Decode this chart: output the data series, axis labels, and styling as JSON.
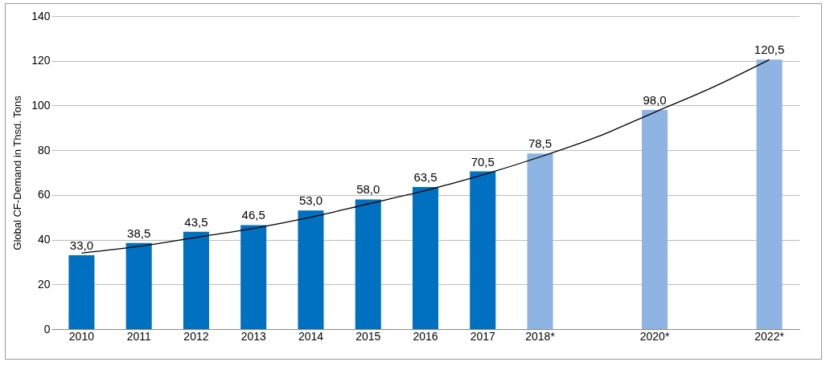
{
  "chart_data": {
    "type": "bar",
    "ylabel": "Global CF-Demand in Thsd. Tons",
    "categories": [
      "2010",
      "2011",
      "2012",
      "2013",
      "2014",
      "2015",
      "2016",
      "2017",
      "2018*",
      null,
      "2020*",
      null,
      "2022*"
    ],
    "series": [
      {
        "values": [
          33.0,
          38.5,
          43.5,
          46.5,
          53.0,
          58.0,
          63.5,
          70.5,
          78.5,
          null,
          98.0,
          null,
          120.5
        ],
        "colors": [
          "#0070c0",
          "#0070c0",
          "#0070c0",
          "#0070c0",
          "#0070c0",
          "#0070c0",
          "#0070c0",
          "#0070c0",
          "#8db4e2",
          null,
          "#8db4e2",
          null,
          "#8db4e2"
        ],
        "value_labels": [
          "33,0",
          "38,5",
          "43,5",
          "46,5",
          "53,0",
          "58,0",
          "63,5",
          "70,5",
          "78,5",
          null,
          "98,0",
          null,
          "120,5"
        ]
      },
      {
        "type": "line",
        "color": "#000000",
        "values": [
          34,
          37,
          41,
          45,
          50,
          56,
          62,
          69,
          77,
          86,
          97,
          108,
          120.5
        ]
      }
    ],
    "ylim": [
      0,
      140
    ],
    "yticks": [
      0,
      20,
      40,
      60,
      80,
      100,
      120,
      140
    ],
    "grid": "y"
  }
}
